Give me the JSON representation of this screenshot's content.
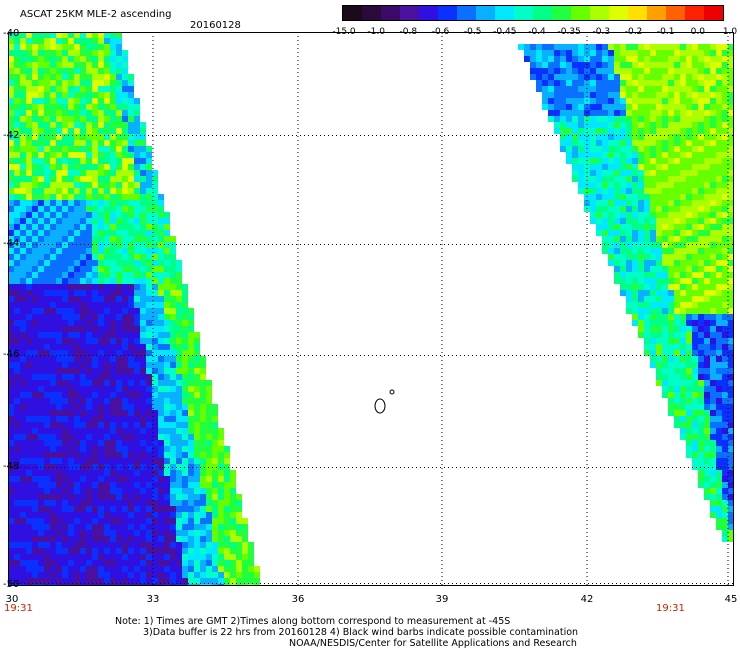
{
  "header": {
    "title": "ASCAT 25KM MLE-2 ascending",
    "date": "20160128"
  },
  "colorbar": {
    "labels": [
      "-15.0",
      "-1.0",
      "-0.8",
      "-0.6",
      "-0.5",
      "-0.45",
      "-0.4",
      "-0.35",
      "-0.3",
      "-0.2",
      "-0.1",
      "0.0",
      "1.0"
    ],
    "colors": [
      "#1a0a1a",
      "#2a0a3a",
      "#3a0a66",
      "#4a10a0",
      "#3010e0",
      "#0a30ff",
      "#0a70ff",
      "#08b0ff",
      "#00e8ff",
      "#00ffc8",
      "#00ff88",
      "#20ff40",
      "#66ff00",
      "#aaff00",
      "#ddff00",
      "#ffe000",
      "#ffa000",
      "#ff6000",
      "#ff2000",
      "#ee0000"
    ]
  },
  "axes": {
    "lon_labels": [
      "33",
      "36",
      "39",
      "42",
      "45"
    ],
    "lat_labels": [
      "-40",
      "-42",
      "-44",
      "-46",
      "-48",
      "-50"
    ],
    "left_bottom_label": "30"
  },
  "times": {
    "left": "19:31",
    "right": "19:31"
  },
  "notes": {
    "line1": "Note: 1) Times are GMT 2)Times along bottom correspond to measurement at -45S",
    "line2": "3)Data buffer is 22 hrs from 20160128 4) Black wind barbs indicate possible contamination",
    "line3": "NOAA/NESDIS/Center for Satellite Applications and Research"
  }
}
